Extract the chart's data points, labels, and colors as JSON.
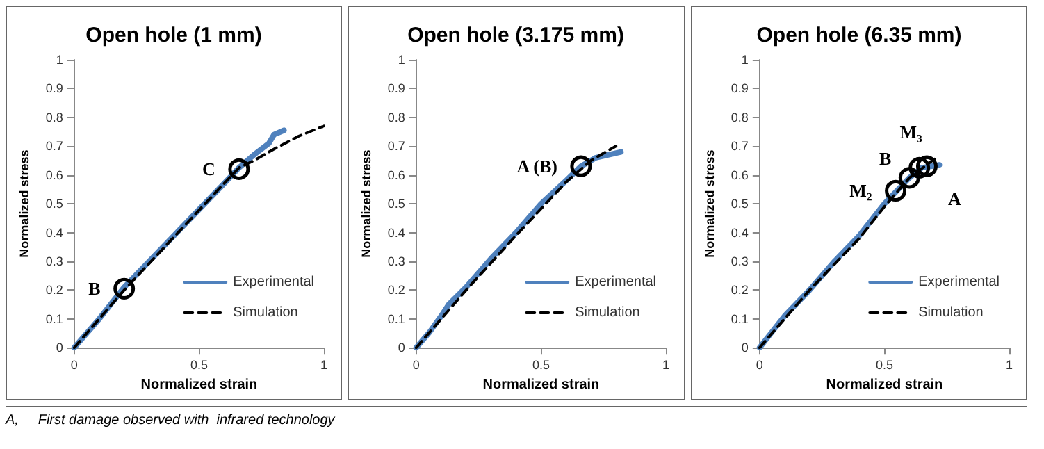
{
  "chart_data": [
    {
      "type": "line",
      "title": "Open hole (1 mm)",
      "xlabel": "Normalized strain",
      "ylabel": "Normalized stress",
      "xlim": [
        0,
        1
      ],
      "xticks": [
        0,
        0.5,
        1
      ],
      "ylim": [
        0,
        1
      ],
      "yticks": [
        0,
        0.1,
        0.2,
        0.3,
        0.4,
        0.5,
        0.6,
        0.7,
        0.8,
        0.9,
        1
      ],
      "grid": false,
      "legend": "bottom right",
      "marker": "none",
      "series": [
        {
          "name": "Experimental",
          "color": "#4f81bd",
          "line_style": "solid",
          "x": [
            0,
            0.1,
            0.2,
            0.3,
            0.4,
            0.5,
            0.6,
            0.66,
            0.72,
            0.78,
            0.8,
            0.84
          ],
          "values": [
            0,
            0.1,
            0.21,
            0.3,
            0.39,
            0.48,
            0.57,
            0.625,
            0.67,
            0.71,
            0.74,
            0.755
          ]
        },
        {
          "name": "Simulation",
          "color": "#000000",
          "line_style": "dashed",
          "x": [
            0,
            0.2,
            0.4,
            0.6,
            0.66,
            0.72,
            0.8,
            0.9,
            1
          ],
          "values": [
            0,
            0.2,
            0.385,
            0.57,
            0.625,
            0.65,
            0.69,
            0.735,
            0.77
          ]
        }
      ],
      "annotations": [
        {
          "text": "B",
          "x": 0.2,
          "y": 0.205
        },
        {
          "text": "C",
          "x": 0.66,
          "y": 0.62
        },
        "A,     First damage observed with  infrared technology"
      ]
    },
    {
      "type": "line",
      "title": "Open hole (3.175 mm)",
      "xlabel": "Normalized strain",
      "ylabel": "Normalized stress",
      "xlim": [
        0,
        1
      ],
      "xticks": [
        0,
        0.5,
        1
      ],
      "ylim": [
        0,
        1
      ],
      "yticks": [
        0,
        0.1,
        0.2,
        0.3,
        0.4,
        0.5,
        0.6,
        0.7,
        0.8,
        0.9,
        1
      ],
      "grid": false,
      "legend": "bottom right",
      "marker": "none",
      "series": [
        {
          "name": "Experimental",
          "color": "#4f81bd",
          "line_style": "solid",
          "x": [
            0,
            0.05,
            0.1,
            0.13,
            0.2,
            0.3,
            0.4,
            0.5,
            0.6,
            0.66,
            0.72,
            0.82
          ],
          "values": [
            0,
            0.05,
            0.11,
            0.15,
            0.21,
            0.31,
            0.4,
            0.5,
            0.58,
            0.63,
            0.66,
            0.68
          ]
        },
        {
          "name": "Simulation",
          "color": "#000000",
          "line_style": "dashed",
          "x": [
            0,
            0.2,
            0.4,
            0.6,
            0.7,
            0.8
          ],
          "values": [
            0,
            0.2,
            0.39,
            0.575,
            0.65,
            0.7
          ]
        }
      ],
      "annotations": [
        {
          "text": "A (B)",
          "x": 0.66,
          "y": 0.63
        }
      ]
    },
    {
      "type": "line",
      "title": "Open hole (6.35 mm)",
      "xlabel": "Normalized strain",
      "ylabel": "Normalized stress",
      "xlim": [
        0,
        1
      ],
      "xticks": [
        0,
        0.5,
        1
      ],
      "ylim": [
        0,
        1
      ],
      "yticks": [
        0,
        0.1,
        0.2,
        0.3,
        0.4,
        0.5,
        0.6,
        0.7,
        0.8,
        0.9,
        1
      ],
      "grid": false,
      "legend": "bottom right",
      "marker": "none",
      "series": [
        {
          "name": "Experimental",
          "color": "#4f81bd",
          "line_style": "solid",
          "x": [
            0,
            0.1,
            0.2,
            0.3,
            0.4,
            0.5,
            0.55,
            0.6,
            0.65,
            0.72
          ],
          "values": [
            0,
            0.11,
            0.2,
            0.3,
            0.39,
            0.5,
            0.545,
            0.59,
            0.625,
            0.635
          ]
        },
        {
          "name": "Simulation",
          "color": "#000000",
          "line_style": "dashed",
          "x": [
            0,
            0.2,
            0.4,
            0.5,
            0.6,
            0.7
          ],
          "values": [
            0,
            0.2,
            0.38,
            0.49,
            0.59,
            0.655
          ]
        }
      ],
      "annotations": [
        {
          "text": "M₂",
          "x": 0.545,
          "y": 0.545
        },
        {
          "text": "B",
          "x": 0.6,
          "y": 0.59
        },
        {
          "text": "M₃",
          "x": 0.64,
          "y": 0.625
        },
        {
          "text": "A",
          "x": 0.67,
          "y": 0.63
        }
      ]
    }
  ]
}
